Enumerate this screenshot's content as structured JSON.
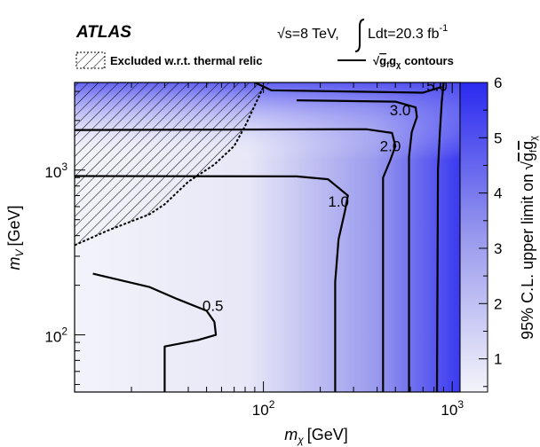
{
  "chart_data": {
    "type": "heatmap",
    "title": "",
    "experiment_label": "ATLAS",
    "energy_label": "√s=8 TeV,",
    "lumi_label": "Ldt=20.3 fb",
    "lumi_exponent": "-1",
    "xlabel": "m",
    "xlabel_sub": "χ",
    "xlabel_unit": "[GeV]",
    "ylabel": "m",
    "ylabel_sub": "V",
    "ylabel_unit": "[GeV]",
    "zlabel_prefix": "95% C.L. upper limit on",
    "zlabel_radicand": "g",
    "zlabel_sub_f": "f",
    "zlabel_sub_chi": "χ",
    "x_scale": "log",
    "y_scale": "log",
    "xlim": [
      10,
      1100
    ],
    "ylim": [
      45,
      3400
    ],
    "zlim": [
      0.4,
      6
    ],
    "x_ticks": [
      {
        "value": 100,
        "base": "10",
        "exp": "2"
      },
      {
        "value": 1000,
        "base": "10",
        "exp": "3"
      }
    ],
    "y_ticks": [
      {
        "value": 100,
        "base": "10",
        "exp": "2"
      },
      {
        "value": 1000,
        "base": "10",
        "exp": "3"
      }
    ],
    "z_ticks": [
      1,
      2,
      3,
      4,
      5,
      6
    ],
    "legend": {
      "placement": "top",
      "items": [
        {
          "name": "Excluded w.r.t. thermal relic",
          "style": "hatched"
        },
        {
          "name": "contours",
          "prefix": "√",
          "radicand": "g",
          "sub_f": "f",
          "sub_chi": "χ",
          "style": "line"
        }
      ]
    },
    "colors": {
      "low": "#f4f4fb",
      "high": "#2a2af0",
      "contour": "#000000",
      "relic": "#000000"
    },
    "contours": [
      {
        "label": "0.5",
        "label_at": [
          54,
          140
        ],
        "points": [
          [
            12.5,
            235
          ],
          [
            25,
            195
          ],
          [
            35,
            165
          ],
          [
            50,
            140
          ],
          [
            55,
            120
          ],
          [
            56,
            100
          ],
          [
            45,
            93
          ],
          [
            30,
            85
          ],
          [
            30,
            45
          ]
        ]
      },
      {
        "label": "1.0",
        "label_at": [
          250,
          600
        ],
        "points": [
          [
            10,
            920
          ],
          [
            150,
            915
          ],
          [
            220,
            880
          ],
          [
            280,
            700
          ],
          [
            270,
            560
          ],
          [
            250,
            380
          ],
          [
            240,
            210
          ],
          [
            240,
            45
          ]
        ]
      },
      {
        "label": "2.0",
        "label_at": [
          470,
          1300
        ],
        "points": [
          [
            10,
            1750
          ],
          [
            350,
            1770
          ],
          [
            480,
            1680
          ],
          [
            500,
            1400
          ],
          [
            470,
            1150
          ],
          [
            430,
            900
          ],
          [
            430,
            45
          ]
        ]
      },
      {
        "label": "3.0",
        "label_at": [
          530,
          2150
        ],
        "points": [
          [
            150,
            2650
          ],
          [
            500,
            2600
          ],
          [
            640,
            2400
          ],
          [
            650,
            2100
          ],
          [
            610,
            1700
          ],
          [
            590,
            1200
          ],
          [
            590,
            45
          ]
        ]
      },
      {
        "label": "5.0",
        "label_at": [
          830,
          3030
        ],
        "points": [
          [
            900,
            3400
          ],
          [
            880,
            2600
          ],
          [
            860,
            1700
          ],
          [
            840,
            1000
          ],
          [
            830,
            45
          ]
        ]
      },
      {
        "label": "",
        "label_at": null,
        "points": [
          [
            90,
            3400
          ],
          [
            110,
            3050
          ],
          [
            700,
            2950
          ],
          [
            880,
            3200
          ]
        ]
      }
    ],
    "excluded_region_boundary": [
      [
        10,
        3400
      ],
      [
        10,
        350
      ],
      [
        15,
        430
      ],
      [
        25,
        540
      ],
      [
        30,
        620
      ],
      [
        40,
        850
      ],
      [
        55,
        1080
      ],
      [
        70,
        1400
      ],
      [
        80,
        1850
      ],
      [
        100,
        3200
      ],
      [
        110,
        3400
      ]
    ]
  }
}
